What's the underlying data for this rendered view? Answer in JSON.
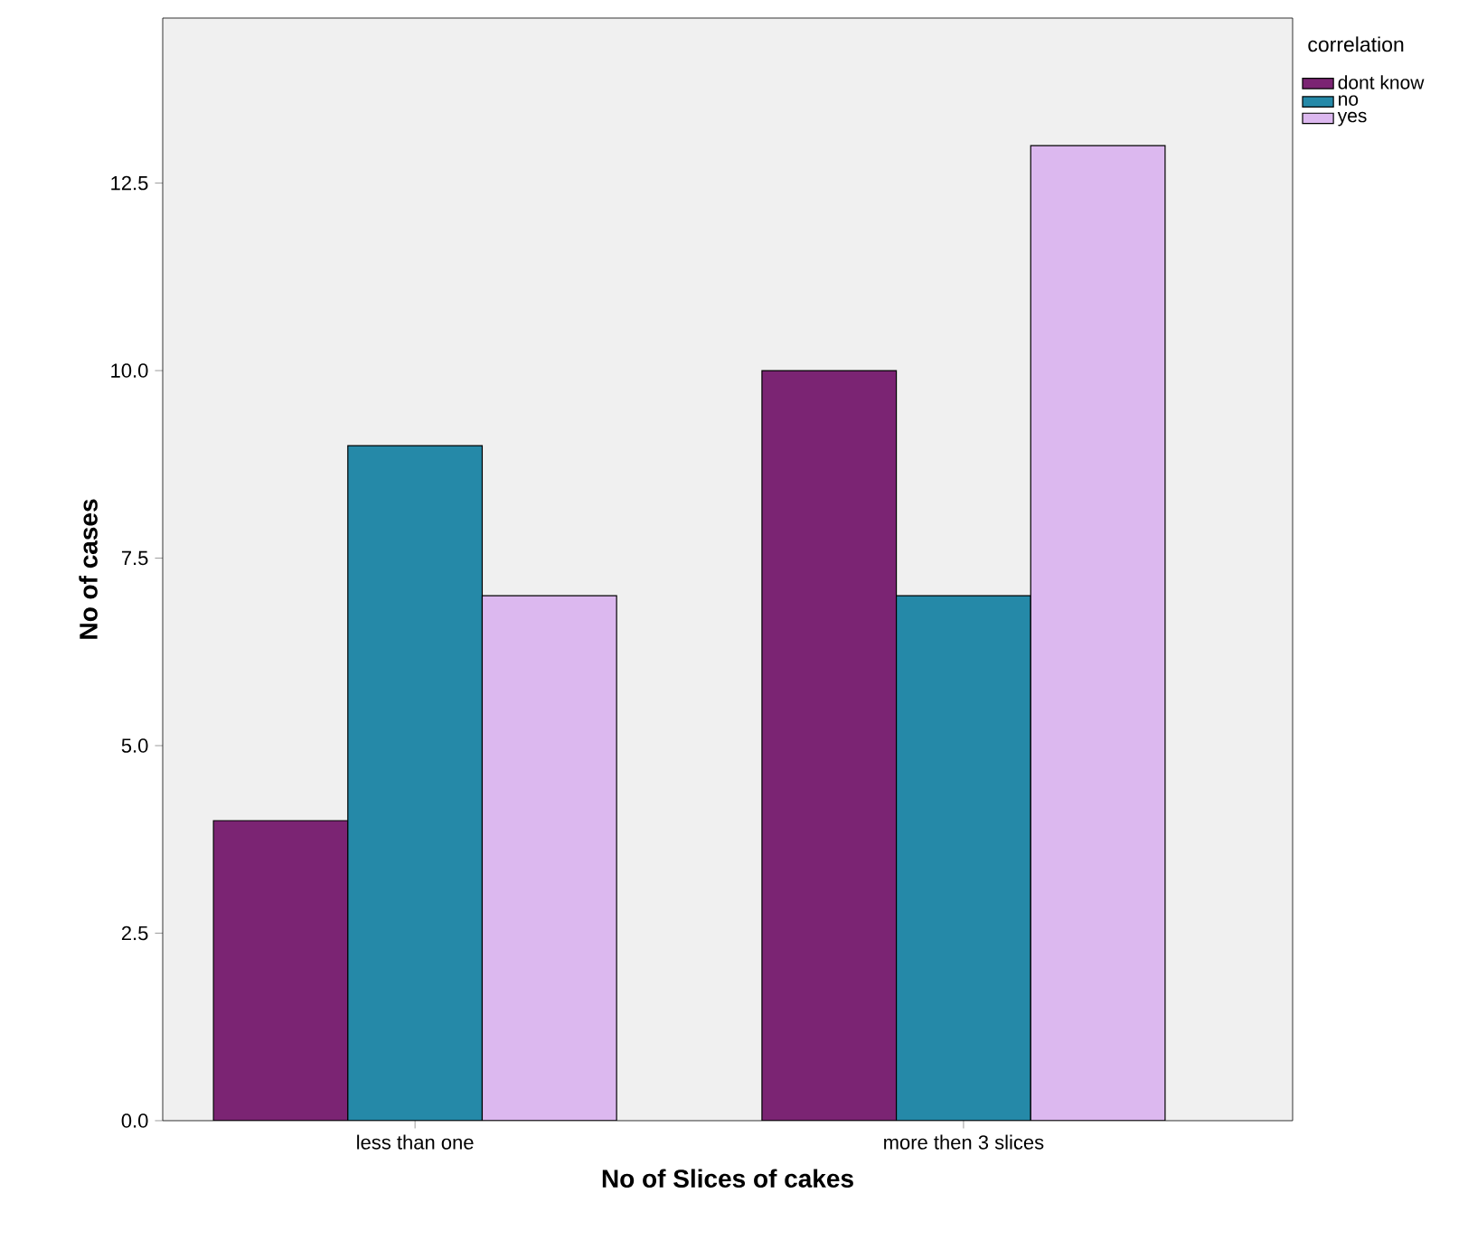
{
  "chart_data": {
    "type": "bar",
    "xlabel": "No of Slices of cakes",
    "ylabel": "No of cases",
    "legend_title": "correlation",
    "categories": [
      "less than one",
      "more then 3 slices"
    ],
    "series": [
      {
        "name": "dont know",
        "color": "#7b2473",
        "values": [
          4,
          10
        ]
      },
      {
        "name": "no",
        "color": "#2589a8",
        "values": [
          9,
          7
        ]
      },
      {
        "name": "yes",
        "color": "#dcb8ef",
        "values": [
          7,
          13
        ]
      }
    ],
    "ylim": [
      0,
      14.7
    ],
    "yticks": [
      {
        "value": 0,
        "label": "0.0"
      },
      {
        "value": 2.5,
        "label": "2.5"
      },
      {
        "value": 5,
        "label": "5.0"
      },
      {
        "value": 7.5,
        "label": "7.5"
      },
      {
        "value": 10,
        "label": "10.0"
      },
      {
        "value": 12.5,
        "label": "12.5"
      }
    ],
    "grid": false,
    "legend": "top right"
  }
}
